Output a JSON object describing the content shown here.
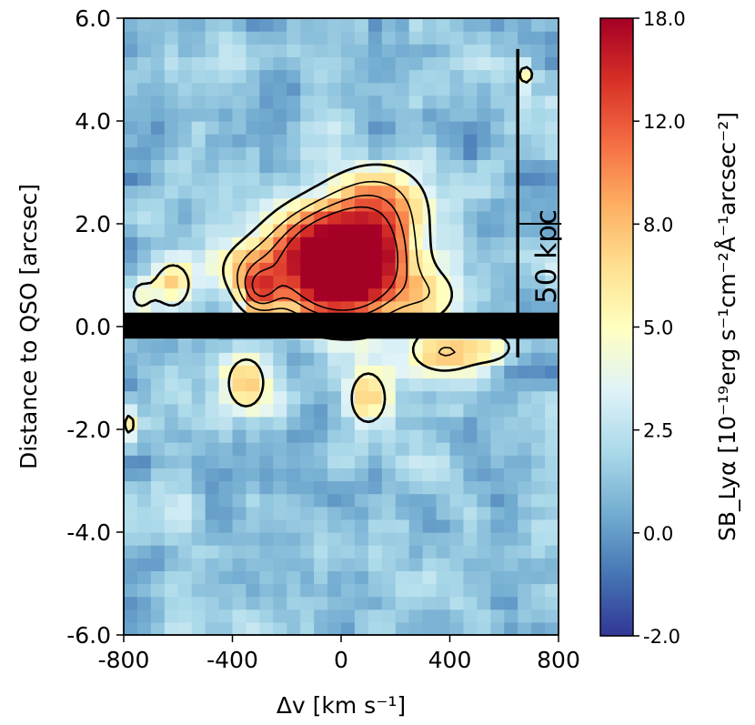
{
  "chart_data": {
    "type": "heatmap",
    "title": "",
    "xlabel": "Δv [km s⁻¹]",
    "ylabel": "Distance to QSO [arcsec]",
    "xlim": [
      -800,
      800
    ],
    "ylim": [
      -6.0,
      6.0
    ],
    "x_ticks": [
      -800,
      -400,
      0,
      400,
      800
    ],
    "x_tick_labels": [
      "-800",
      "-400",
      "0",
      "400",
      "800"
    ],
    "y_ticks": [
      -6,
      -4,
      -2,
      0,
      2,
      4,
      6
    ],
    "y_tick_labels": [
      "-6.0",
      "-4.0",
      "-2.0",
      "0.0",
      "2.0",
      "4.0",
      "6.0"
    ],
    "colorbar": {
      "label": "SB_Lyα [10⁻¹⁹erg s⁻¹cm⁻²Å⁻¹arcsec⁻²]",
      "range": [
        -2.0,
        18.0
      ],
      "tick_values": [
        -2.0,
        0.0,
        2.5,
        5.0,
        8.0,
        12.0,
        18.0
      ],
      "tick_labels": [
        "-2.0",
        "0.0",
        "2.5",
        "5.0",
        "8.0",
        "12.0",
        "18.0"
      ],
      "colormap": "RdYlBu_r"
    },
    "emission_blobs": [
      {
        "x": 0,
        "y": 1.0,
        "peak": 17,
        "sx": 150,
        "sy": 0.65
      },
      {
        "x": 80,
        "y": 1.6,
        "peak": 9,
        "sx": 130,
        "sy": 0.7
      },
      {
        "x": -100,
        "y": 1.5,
        "peak": 7,
        "sx": 140,
        "sy": 0.6
      },
      {
        "x": 150,
        "y": 2.5,
        "peak": 4.5,
        "sx": 130,
        "sy": 0.55
      },
      {
        "x": -300,
        "y": 0.7,
        "peak": 8,
        "sx": 50,
        "sy": 0.3
      },
      {
        "x": -330,
        "y": 1.1,
        "peak": 4,
        "sx": 100,
        "sy": 0.4
      },
      {
        "x": -620,
        "y": 0.8,
        "peak": 5.5,
        "sx": 50,
        "sy": 0.35
      },
      {
        "x": -740,
        "y": 0.6,
        "peak": 3.5,
        "sx": 40,
        "sy": 0.3
      },
      {
        "x": 330,
        "y": 0.6,
        "peak": 4,
        "sx": 80,
        "sy": 0.35
      },
      {
        "x": 380,
        "y": -0.5,
        "peak": 6,
        "sx": 90,
        "sy": 0.3
      },
      {
        "x": 560,
        "y": -0.4,
        "peak": 4,
        "sx": 70,
        "sy": 0.25
      },
      {
        "x": 100,
        "y": -1.4,
        "peak": 5,
        "sx": 60,
        "sy": 0.45
      },
      {
        "x": -350,
        "y": -1.1,
        "peak": 4.5,
        "sx": 70,
        "sy": 0.5
      },
      {
        "x": 680,
        "y": 4.9,
        "peak": 4,
        "sx": 30,
        "sy": 0.2
      },
      {
        "x": -780,
        "y": -1.9,
        "peak": 3.5,
        "sx": 30,
        "sy": 0.3
      }
    ],
    "contour_levels": [
      3.0,
      6.0,
      9.0,
      12.0
    ],
    "qso_mask_y_range": [
      -0.2,
      0.2
    ],
    "scale_bar": {
      "label": "50 kpc",
      "x": 650,
      "y_range": [
        -0.6,
        5.4
      ]
    }
  },
  "colors": {
    "mask": "#000000",
    "contour": "#000000"
  }
}
